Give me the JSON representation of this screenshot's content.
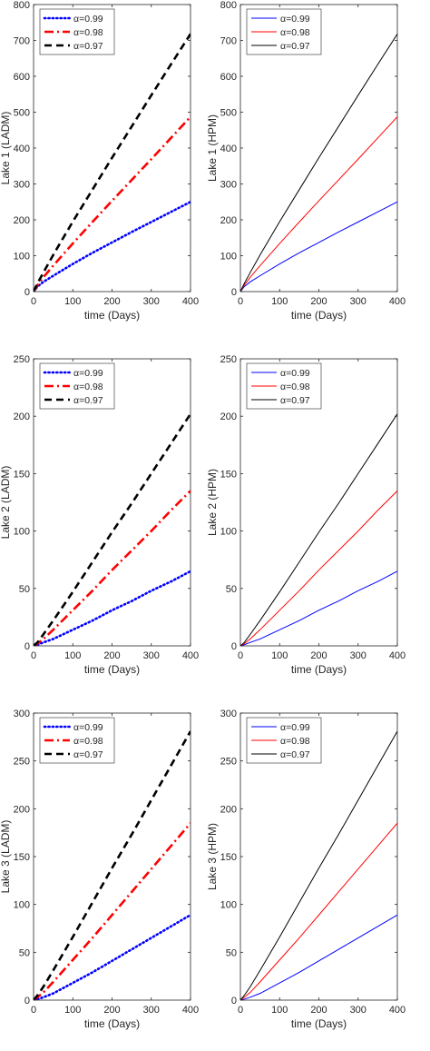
{
  "chart_data": [
    {
      "type": "line",
      "panel": "lake1-ladm",
      "title": "",
      "xlabel": "time (Days)",
      "ylabel": "Lake 1 (LADM)",
      "xlim": [
        0,
        400
      ],
      "ylim": [
        0,
        800
      ],
      "xticks": [
        0,
        100,
        200,
        300,
        400
      ],
      "yticks": [
        0,
        100,
        200,
        300,
        400,
        500,
        600,
        700,
        800
      ],
      "grid": false,
      "legend": "top-left",
      "series": [
        {
          "name": "α=0.99",
          "color": "#0000ff",
          "style": "dotted-bold",
          "x": [
            0,
            10,
            25,
            50,
            100,
            150,
            200,
            250,
            300,
            350,
            400
          ],
          "y": [
            0,
            14,
            27,
            44,
            77,
            108,
            137,
            166,
            194,
            222,
            250
          ]
        },
        {
          "name": "α=0.98",
          "color": "#ff0000",
          "style": "dashdot-bold",
          "x": [
            0,
            10,
            25,
            50,
            100,
            150,
            200,
            250,
            300,
            350,
            400
          ],
          "y": [
            0,
            18,
            40,
            72,
            134,
            194,
            253,
            311,
            369,
            428,
            487
          ]
        },
        {
          "name": "α=0.97",
          "color": "#000000",
          "style": "dashed-bold",
          "x": [
            0,
            10,
            25,
            50,
            100,
            150,
            200,
            250,
            300,
            350,
            400
          ],
          "y": [
            0,
            23,
            53,
            102,
            195,
            284,
            373,
            460,
            547,
            633,
            718
          ]
        }
      ]
    },
    {
      "type": "line",
      "panel": "lake1-hpm",
      "title": "",
      "xlabel": "time (Days)",
      "ylabel": "Lake 1 (HPM)",
      "xlim": [
        0,
        400
      ],
      "ylim": [
        0,
        800
      ],
      "xticks": [
        0,
        100,
        200,
        300,
        400
      ],
      "yticks": [
        0,
        100,
        200,
        300,
        400,
        500,
        600,
        700,
        800
      ],
      "grid": false,
      "legend": "top-left",
      "series": [
        {
          "name": "α=0.99",
          "color": "#0000ff",
          "style": "solid",
          "x": [
            0,
            10,
            25,
            50,
            100,
            150,
            200,
            250,
            300,
            350,
            400
          ],
          "y": [
            0,
            14,
            27,
            44,
            77,
            108,
            137,
            166,
            194,
            222,
            250
          ]
        },
        {
          "name": "α=0.98",
          "color": "#ff0000",
          "style": "solid",
          "x": [
            0,
            10,
            25,
            50,
            100,
            150,
            200,
            250,
            300,
            350,
            400
          ],
          "y": [
            0,
            18,
            40,
            72,
            134,
            194,
            253,
            311,
            369,
            428,
            487
          ]
        },
        {
          "name": "α=0.97",
          "color": "#000000",
          "style": "solid",
          "x": [
            0,
            10,
            25,
            50,
            100,
            150,
            200,
            250,
            300,
            350,
            400
          ],
          "y": [
            0,
            23,
            53,
            102,
            195,
            284,
            373,
            460,
            547,
            633,
            718
          ]
        }
      ]
    },
    {
      "type": "line",
      "panel": "lake2-ladm",
      "title": "",
      "xlabel": "time (Days)",
      "ylabel": "Lake 2 (LADM)",
      "xlim": [
        0,
        400
      ],
      "ylim": [
        0,
        250
      ],
      "xticks": [
        0,
        100,
        200,
        300,
        400
      ],
      "yticks": [
        0,
        50,
        100,
        150,
        200,
        250
      ],
      "grid": false,
      "legend": "top-left",
      "series": [
        {
          "name": "α=0.99",
          "color": "#0000ff",
          "style": "dotted-bold",
          "x": [
            0,
            10,
            25,
            50,
            100,
            150,
            200,
            250,
            300,
            350,
            400
          ],
          "y": [
            0,
            1,
            3,
            6,
            14,
            22,
            31,
            39,
            48,
            56,
            65
          ]
        },
        {
          "name": "α=0.98",
          "color": "#ff0000",
          "style": "dashdot-bold",
          "x": [
            0,
            10,
            25,
            50,
            100,
            150,
            200,
            250,
            300,
            350,
            400
          ],
          "y": [
            0,
            2,
            6,
            14,
            31,
            48,
            66,
            83,
            100,
            118,
            135
          ]
        },
        {
          "name": "α=0.97",
          "color": "#000000",
          "style": "dashed-bold",
          "x": [
            0,
            10,
            25,
            50,
            100,
            150,
            200,
            250,
            300,
            350,
            400
          ],
          "y": [
            0,
            3,
            10,
            22,
            47,
            73,
            99,
            124,
            150,
            176,
            202
          ]
        }
      ]
    },
    {
      "type": "line",
      "panel": "lake2-hpm",
      "title": "",
      "xlabel": "time (Days)",
      "ylabel": "Lake 2 (HPM)",
      "xlim": [
        0,
        400
      ],
      "ylim": [
        0,
        250
      ],
      "xticks": [
        0,
        100,
        200,
        300,
        400
      ],
      "yticks": [
        0,
        50,
        100,
        150,
        200,
        250
      ],
      "grid": false,
      "legend": "top-left",
      "series": [
        {
          "name": "α=0.99",
          "color": "#0000ff",
          "style": "solid",
          "x": [
            0,
            10,
            25,
            50,
            100,
            150,
            200,
            250,
            300,
            350,
            400
          ],
          "y": [
            0,
            1,
            3,
            6,
            14,
            22,
            31,
            39,
            48,
            56,
            65
          ]
        },
        {
          "name": "α=0.98",
          "color": "#ff0000",
          "style": "solid",
          "x": [
            0,
            10,
            25,
            50,
            100,
            150,
            200,
            250,
            300,
            350,
            400
          ],
          "y": [
            0,
            2,
            6,
            14,
            31,
            48,
            66,
            83,
            100,
            118,
            135
          ]
        },
        {
          "name": "α=0.97",
          "color": "#000000",
          "style": "solid",
          "x": [
            0,
            10,
            25,
            50,
            100,
            150,
            200,
            250,
            300,
            350,
            400
          ],
          "y": [
            0,
            3,
            10,
            22,
            47,
            73,
            99,
            124,
            150,
            176,
            202
          ]
        }
      ]
    },
    {
      "type": "line",
      "panel": "lake3-ladm",
      "title": "",
      "xlabel": "time (Days)",
      "ylabel": "Lake 3 (LADM)",
      "xlim": [
        0,
        400
      ],
      "ylim": [
        0,
        300
      ],
      "xticks": [
        0,
        100,
        200,
        300,
        400
      ],
      "yticks": [
        0,
        50,
        100,
        150,
        200,
        250,
        300
      ],
      "grid": false,
      "legend": "top-left",
      "series": [
        {
          "name": "α=0.99",
          "color": "#0000ff",
          "style": "dotted-bold",
          "x": [
            0,
            10,
            25,
            50,
            100,
            150,
            200,
            250,
            300,
            350,
            400
          ],
          "y": [
            0,
            1,
            3,
            7,
            18,
            29,
            41,
            53,
            65,
            77,
            89
          ]
        },
        {
          "name": "α=0.98",
          "color": "#ff0000",
          "style": "dashdot-bold",
          "x": [
            0,
            10,
            25,
            50,
            100,
            150,
            200,
            250,
            300,
            350,
            400
          ],
          "y": [
            0,
            3,
            8,
            19,
            42,
            65,
            89,
            113,
            137,
            161,
            185
          ]
        },
        {
          "name": "α=0.97",
          "color": "#000000",
          "style": "dashed-bold",
          "x": [
            0,
            10,
            25,
            50,
            100,
            150,
            200,
            250,
            300,
            350,
            400
          ],
          "y": [
            0,
            5,
            14,
            31,
            66,
            102,
            138,
            173,
            209,
            245,
            281
          ]
        }
      ]
    },
    {
      "type": "line",
      "panel": "lake3-hpm",
      "title": "",
      "xlabel": "time (Days)",
      "ylabel": "Lake 3 (HPM)",
      "xlim": [
        0,
        400
      ],
      "ylim": [
        0,
        300
      ],
      "xticks": [
        0,
        100,
        200,
        300,
        400
      ],
      "yticks": [
        0,
        50,
        100,
        150,
        200,
        250,
        300
      ],
      "grid": false,
      "legend": "top-left",
      "series": [
        {
          "name": "α=0.99",
          "color": "#0000ff",
          "style": "solid",
          "x": [
            0,
            10,
            25,
            50,
            100,
            150,
            200,
            250,
            300,
            350,
            400
          ],
          "y": [
            0,
            1,
            3,
            7,
            18,
            29,
            41,
            53,
            65,
            77,
            89
          ]
        },
        {
          "name": "α=0.98",
          "color": "#ff0000",
          "style": "solid",
          "x": [
            0,
            10,
            25,
            50,
            100,
            150,
            200,
            250,
            300,
            350,
            400
          ],
          "y": [
            0,
            3,
            8,
            19,
            42,
            65,
            89,
            113,
            137,
            161,
            185
          ]
        },
        {
          "name": "α=0.97",
          "color": "#000000",
          "style": "solid",
          "x": [
            0,
            10,
            25,
            50,
            100,
            150,
            200,
            250,
            300,
            350,
            400
          ],
          "y": [
            0,
            5,
            14,
            31,
            66,
            102,
            138,
            173,
            209,
            245,
            281
          ]
        }
      ]
    }
  ]
}
